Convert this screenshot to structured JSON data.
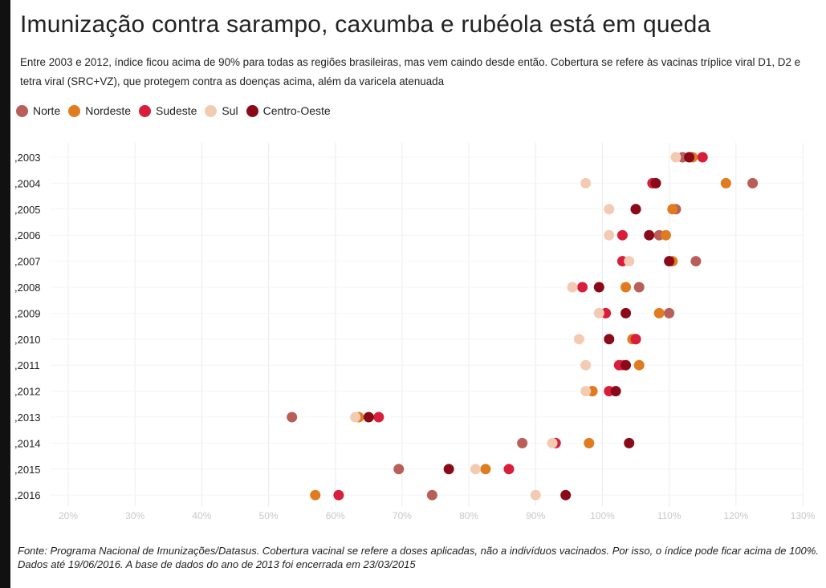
{
  "title": "Imunização contra sarampo, caxumba e rubéola está em queda",
  "subtitle": "Entre 2003 e 2012, índice ficou acima de 90% para todas as regiões brasileiras, mas vem caindo desde então. Cobertura se refere às vacinas tríplice viral D1, D2 e tetra viral (SRC+VZ), que protegem contra as doenças acima, além da varicela atenuada",
  "source": "Fonte: Programa Nacional de Imunizações/Datasus. Cobertura vacinal se refere a doses aplicadas, não a indivíduos vacinados. Por isso, o índice pode ficar acima de 100%. Dados até 19/06/2016. A base de dados do ano de 2013 foi encerrada em 23/03/2015",
  "chart_data": {
    "type": "scatter",
    "categories": [
      "2003",
      "2004",
      "2005",
      "2006",
      "2007",
      "2008",
      "2009",
      "2010",
      "2011",
      "2012",
      "2013",
      "2014",
      "2015",
      "2016"
    ],
    "category_labels": [
      ",2003",
      ",2004",
      ",2005",
      ",2006",
      ",2007",
      ",2008",
      ",2009",
      ",2010",
      ",2011",
      ",2012",
      ",2013",
      ",2014",
      ",2015",
      ",2016"
    ],
    "x_ticks": [
      "20%",
      "30%",
      "40%",
      "50%",
      "60%",
      "70%",
      "80%",
      "90%",
      "100%",
      "110%",
      "120%",
      "130%"
    ],
    "xlim": [
      20,
      130
    ],
    "grid": true,
    "legend_position": "top-left",
    "series": [
      {
        "name": "Norte",
        "color": "#b85f5a",
        "values": [
          112,
          122.5,
          111,
          108.5,
          114,
          105.5,
          110,
          105,
          103,
          98.5,
          53.5,
          88,
          69.5,
          74.5
        ]
      },
      {
        "name": "Nordeste",
        "color": "#e07b1f",
        "values": [
          113.5,
          118.5,
          110.5,
          109.5,
          110.5,
          103.5,
          108.5,
          104.5,
          105.5,
          98.5,
          63.5,
          98,
          82.5,
          57
        ]
      },
      {
        "name": "Sudeste",
        "color": "#d81e3a",
        "values": [
          115,
          107.5,
          105,
          103,
          103,
          97,
          100.5,
          105,
          102.5,
          101,
          66.5,
          93,
          86,
          60.5
        ]
      },
      {
        "name": "Sul",
        "color": "#f3cbb3",
        "values": [
          111,
          97.5,
          101,
          101,
          104,
          95.5,
          99.5,
          96.5,
          97.5,
          97.5,
          63,
          92.5,
          81,
          90
        ]
      },
      {
        "name": "Centro-Oeste",
        "color": "#8b0a1a",
        "values": [
          113,
          108,
          105,
          107,
          110,
          99.5,
          103.5,
          101,
          103.5,
          102,
          65,
          104,
          77,
          94.5
        ]
      }
    ]
  }
}
